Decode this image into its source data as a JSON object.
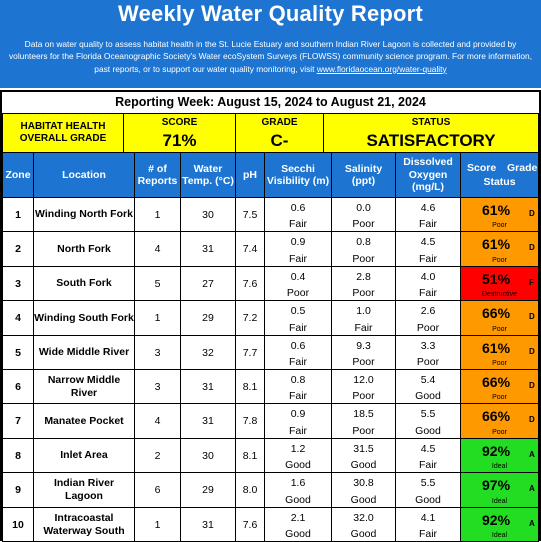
{
  "header": {
    "title": "Weekly Water Quality Report",
    "description": "Data on water quality to assess habitat health in the St. Lucie Estuary and southern Indian River Lagoon is collected and provided by volunteers for the Florida Oceanographic Society's Water ecoSystem Surveys (FLOWSS) community science program.  For more information, past reports, or to support our water quality monitoring, visit ",
    "link_text": "www.floridaocean.org/water-quality"
  },
  "reporting_week": "Reporting Week: August 15, 2024 to August 21, 2024",
  "summary": {
    "label": "HABITAT HEALTH\nOVERALL GRADE",
    "score_label": "SCORE",
    "score_value": "71%",
    "grade_label": "GRADE",
    "grade_value": "C-",
    "status_label": "STATUS",
    "status_value": "SATISFACTORY"
  },
  "columns": [
    "Zone",
    "Location",
    "# of Reports",
    "Water Temp. (°C)",
    "pH",
    "Secchi Visibility (m)",
    "Salinity (ppt)",
    "Dissolved Oxygen (mg/L)",
    "Score",
    "Grade",
    "Status"
  ],
  "rows": [
    {
      "zone": "1",
      "location": "Winding North Fork",
      "reports": "1",
      "temp": "30",
      "ph": "7.5",
      "secchi": "0.6",
      "secchi_cond": "Fair",
      "salinity": "0.0",
      "salinity_cond": "Poor",
      "oxygen": "4.6",
      "oxygen_cond": "Fair",
      "score": "61%",
      "grade": "D",
      "status": "Poor",
      "color": "#ff9900"
    },
    {
      "zone": "2",
      "location": "North Fork",
      "reports": "4",
      "temp": "31",
      "ph": "7.4",
      "secchi": "0.9",
      "secchi_cond": "Fair",
      "salinity": "0.8",
      "salinity_cond": "Poor",
      "oxygen": "4.5",
      "oxygen_cond": "Fair",
      "score": "61%",
      "grade": "D",
      "status": "Poor",
      "color": "#ff9900"
    },
    {
      "zone": "3",
      "location": "South Fork",
      "reports": "5",
      "temp": "27",
      "ph": "7.6",
      "secchi": "0.4",
      "secchi_cond": "Poor",
      "salinity": "2.8",
      "salinity_cond": "Poor",
      "oxygen": "4.0",
      "oxygen_cond": "Fair",
      "score": "51%",
      "grade": "F",
      "status": "Destructive",
      "color": "#ff0000"
    },
    {
      "zone": "4",
      "location": "Winding South Fork",
      "reports": "1",
      "temp": "29",
      "ph": "7.2",
      "secchi": "0.5",
      "secchi_cond": "Fair",
      "salinity": "1.0",
      "salinity_cond": "Fair",
      "oxygen": "2.6",
      "oxygen_cond": "Poor",
      "score": "66%",
      "grade": "D",
      "status": "Poor",
      "color": "#ff9900"
    },
    {
      "zone": "5",
      "location": "Wide Middle River",
      "reports": "3",
      "temp": "32",
      "ph": "7.7",
      "secchi": "0.6",
      "secchi_cond": "Fair",
      "salinity": "9.3",
      "salinity_cond": "Poor",
      "oxygen": "3.3",
      "oxygen_cond": "Poor",
      "score": "61%",
      "grade": "D",
      "status": "Poor",
      "color": "#ff9900"
    },
    {
      "zone": "6",
      "location": "Narrow Middle River",
      "reports": "3",
      "temp": "31",
      "ph": "8.1",
      "secchi": "0.8",
      "secchi_cond": "Fair",
      "salinity": "12.0",
      "salinity_cond": "Poor",
      "oxygen": "5.4",
      "oxygen_cond": "Good",
      "score": "66%",
      "grade": "D",
      "status": "Poor",
      "color": "#ff9900"
    },
    {
      "zone": "7",
      "location": "Manatee Pocket",
      "reports": "4",
      "temp": "31",
      "ph": "7.8",
      "secchi": "0.9",
      "secchi_cond": "Fair",
      "salinity": "18.5",
      "salinity_cond": "Poor",
      "oxygen": "5.5",
      "oxygen_cond": "Good",
      "score": "66%",
      "grade": "D",
      "status": "Poor",
      "color": "#ff9900"
    },
    {
      "zone": "8",
      "location": "Inlet Area",
      "reports": "2",
      "temp": "30",
      "ph": "8.1",
      "secchi": "1.2",
      "secchi_cond": "Good",
      "salinity": "31.5",
      "salinity_cond": "Good",
      "oxygen": "4.5",
      "oxygen_cond": "Fair",
      "score": "92%",
      "grade": "A",
      "status": "Ideal",
      "color": "#22dd22"
    },
    {
      "zone": "9",
      "location": "Indian River Lagoon",
      "reports": "6",
      "temp": "29",
      "ph": "8.0",
      "secchi": "1.6",
      "secchi_cond": "Good",
      "salinity": "30.8",
      "salinity_cond": "Good",
      "oxygen": "5.5",
      "oxygen_cond": "Good",
      "score": "97%",
      "grade": "A",
      "status": "Ideal",
      "color": "#22dd22"
    },
    {
      "zone": "10",
      "location": "Intracoastal Waterway South",
      "reports": "1",
      "temp": "31",
      "ph": "7.6",
      "secchi": "2.1",
      "secchi_cond": "Good",
      "salinity": "32.0",
      "salinity_cond": "Good",
      "oxygen": "4.1",
      "oxygen_cond": "Fair",
      "score": "92%",
      "grade": "A",
      "status": "Ideal",
      "color": "#22dd22"
    }
  ]
}
